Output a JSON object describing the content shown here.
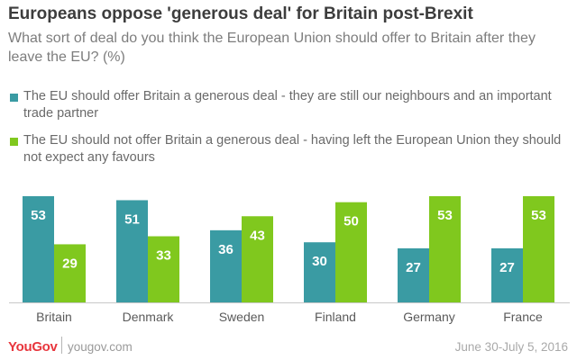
{
  "header": {
    "title": "Europeans oppose 'generous deal' for Britain post-Brexit",
    "subtitle": "What sort of deal do you think the European Union should offer to Britain after they leave the EU? (%)"
  },
  "colors": {
    "series0": "#3a9ba3",
    "series1": "#80c81e",
    "axis": "#c8c8c8",
    "logo": "#e8363d"
  },
  "chart_data": {
    "type": "bar",
    "categories": [
      "Britain",
      "Denmark",
      "Sweden",
      "Finland",
      "Germany",
      "France"
    ],
    "series": [
      {
        "name": "The EU should offer Britain a generous deal - they are still our neighbours and an important trade partner",
        "values": [
          53,
          51,
          36,
          30,
          27,
          27
        ]
      },
      {
        "name": "The EU should not offer Britain a generous deal - having left the European Union they should not expect any favours",
        "values": [
          29,
          33,
          43,
          50,
          53,
          53
        ]
      }
    ],
    "ylim": [
      0,
      53
    ],
    "grid": false,
    "legend": "top",
    "data_labels": true
  },
  "footer": {
    "logo": "YouGov",
    "site": "yougov.com",
    "date": "June 30-July 5, 2016"
  }
}
